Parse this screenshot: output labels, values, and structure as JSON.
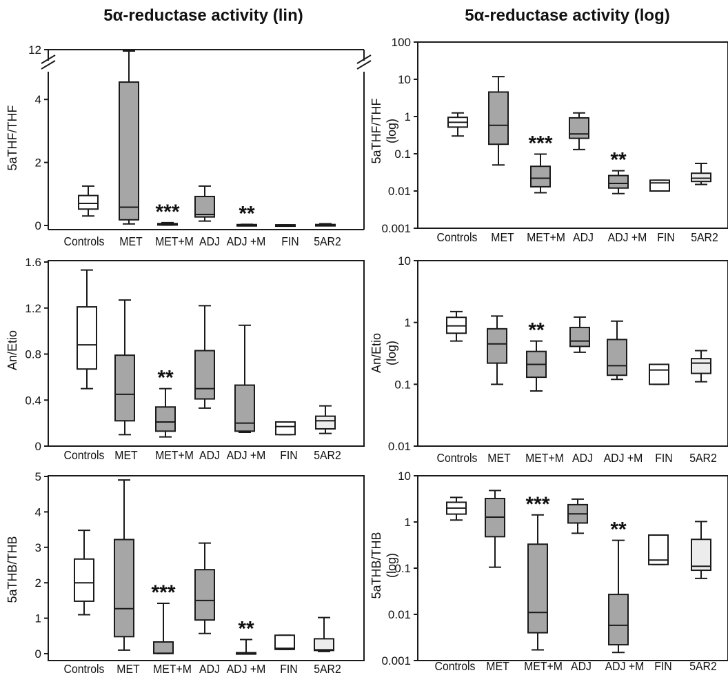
{
  "titles": {
    "left": "5α-reductase activity (lin)",
    "right": "5α-reductase activity (log)"
  },
  "categories": [
    "Controls",
    "MET",
    "MET+M",
    "ADJ",
    "ADJ +M",
    "FIN",
    "5AR2"
  ],
  "colors": {
    "controls_fill": "#ffffff",
    "treated_fill": "#a6a6a6",
    "fin_fill": "#ffffff",
    "ar2_fill": "#ececec",
    "stroke": "#1a1a1a"
  },
  "chart_data": [
    {
      "type": "box",
      "scale": "linear",
      "ylabel": "5aTHF/THF",
      "yticks": [
        0,
        2,
        4,
        12
      ],
      "ylim": [
        0,
        4.8
      ],
      "axis_break": true,
      "axis_break_top": 12,
      "categories": [
        "Controls",
        "MET",
        "MET+M",
        "ADJ",
        "ADJ +M",
        "FIN",
        "5AR2"
      ],
      "boxes": [
        {
          "min": 0.3,
          "q1": 0.52,
          "median": 0.7,
          "q3": 0.95,
          "max": 1.25
        },
        {
          "min": 0.05,
          "q1": 0.18,
          "median": 0.58,
          "q3": 4.55,
          "max": 11.8
        },
        {
          "min": 0.01,
          "q1": 0.015,
          "median": 0.03,
          "q3": 0.06,
          "max": 0.09
        },
        {
          "min": 0.14,
          "q1": 0.27,
          "median": 0.35,
          "q3": 0.92,
          "max": 1.25
        },
        {
          "min": 0.01,
          "q1": 0.013,
          "median": 0.016,
          "q3": 0.028,
          "max": 0.035
        },
        {
          "min": 0.01,
          "q1": 0.01,
          "median": 0.017,
          "q3": 0.02,
          "max": 0.02
        },
        {
          "min": 0.015,
          "q1": 0.018,
          "median": 0.022,
          "q3": 0.03,
          "max": 0.055
        }
      ],
      "annotations": [
        "",
        "",
        "***",
        "",
        "**",
        "",
        ""
      ]
    },
    {
      "type": "box",
      "scale": "log",
      "ylabel": "5aTHF/THF (log)",
      "yticks": [
        "0.001",
        "0.01",
        "0.1",
        "1",
        "10",
        "100"
      ],
      "ylim": [
        0.001,
        100
      ],
      "categories": [
        "Controls",
        "MET",
        "MET+M",
        "ADJ",
        "ADJ +M",
        "FIN",
        "5AR2"
      ],
      "boxes": [
        {
          "min": 0.3,
          "q1": 0.52,
          "median": 0.7,
          "q3": 0.95,
          "max": 1.25
        },
        {
          "min": 0.05,
          "q1": 0.18,
          "median": 0.58,
          "q3": 4.55,
          "max": 11.8
        },
        {
          "min": 0.009,
          "q1": 0.013,
          "median": 0.022,
          "q3": 0.046,
          "max": 0.098
        },
        {
          "min": 0.13,
          "q1": 0.26,
          "median": 0.34,
          "q3": 0.92,
          "max": 1.25
        },
        {
          "min": 0.0085,
          "q1": 0.012,
          "median": 0.016,
          "q3": 0.026,
          "max": 0.035
        },
        {
          "min": 0.01,
          "q1": 0.01,
          "median": 0.0165,
          "q3": 0.0195,
          "max": 0.0195
        },
        {
          "min": 0.015,
          "q1": 0.018,
          "median": 0.022,
          "q3": 0.03,
          "max": 0.055
        }
      ],
      "annotations": [
        "",
        "",
        "***",
        "",
        "**",
        "",
        ""
      ]
    },
    {
      "type": "box",
      "scale": "linear",
      "ylabel": "An/Etio",
      "yticks": [
        "0",
        "0.4",
        "0.8",
        "1.2",
        "1.6"
      ],
      "ylim": [
        0,
        1.6
      ],
      "categories": [
        "Controls",
        "MET",
        "MET+M",
        "ADJ",
        "ADJ +M",
        "FIN",
        "5AR2"
      ],
      "boxes": [
        {
          "min": 0.5,
          "q1": 0.67,
          "median": 0.88,
          "q3": 1.21,
          "max": 1.53
        },
        {
          "min": 0.1,
          "q1": 0.22,
          "median": 0.45,
          "q3": 0.79,
          "max": 1.27
        },
        {
          "min": 0.08,
          "q1": 0.13,
          "median": 0.21,
          "q3": 0.34,
          "max": 0.5
        },
        {
          "min": 0.33,
          "q1": 0.41,
          "median": 0.5,
          "q3": 0.83,
          "max": 1.22
        },
        {
          "min": 0.12,
          "q1": 0.13,
          "median": 0.2,
          "q3": 0.53,
          "max": 1.05
        },
        {
          "min": 0.1,
          "q1": 0.1,
          "median": 0.17,
          "q3": 0.21,
          "max": 0.21
        },
        {
          "min": 0.11,
          "q1": 0.15,
          "median": 0.22,
          "q3": 0.26,
          "max": 0.35
        }
      ],
      "annotations": [
        "",
        "",
        "**",
        "",
        "",
        "",
        ""
      ]
    },
    {
      "type": "box",
      "scale": "log",
      "ylabel": "An/Etio (log)",
      "yticks": [
        "0.01",
        "0.1",
        "1",
        "10"
      ],
      "ylim": [
        0.01,
        10
      ],
      "categories": [
        "Controls",
        "MET",
        "MET+M",
        "ADJ",
        "ADJ +M",
        "FIN",
        "5AR2"
      ],
      "boxes": [
        {
          "min": 0.5,
          "q1": 0.67,
          "median": 0.88,
          "q3": 1.21,
          "max": 1.5
        },
        {
          "min": 0.1,
          "q1": 0.22,
          "median": 0.45,
          "q3": 0.79,
          "max": 1.27
        },
        {
          "min": 0.078,
          "q1": 0.13,
          "median": 0.21,
          "q3": 0.34,
          "max": 0.5
        },
        {
          "min": 0.33,
          "q1": 0.41,
          "median": 0.5,
          "q3": 0.83,
          "max": 1.22
        },
        {
          "min": 0.12,
          "q1": 0.14,
          "median": 0.2,
          "q3": 0.53,
          "max": 1.05
        },
        {
          "min": 0.1,
          "q1": 0.1,
          "median": 0.17,
          "q3": 0.21,
          "max": 0.21
        },
        {
          "min": 0.11,
          "q1": 0.15,
          "median": 0.22,
          "q3": 0.26,
          "max": 0.35
        }
      ],
      "annotations": [
        "",
        "",
        "**",
        "",
        "",
        "",
        ""
      ]
    },
    {
      "type": "box",
      "scale": "linear",
      "ylabel": "5aTHB/THB",
      "yticks": [
        "0",
        "1",
        "2",
        "3",
        "4",
        "5"
      ],
      "ylim": [
        -0.1,
        5
      ],
      "categories": [
        "Controls",
        "MET",
        "MET+M",
        "ADJ",
        "ADJ +M",
        "FIN",
        "5AR2"
      ],
      "boxes": [
        {
          "min": 1.1,
          "q1": 1.48,
          "median": 2.0,
          "q3": 2.67,
          "max": 3.48
        },
        {
          "min": 0.1,
          "q1": 0.48,
          "median": 1.27,
          "q3": 3.22,
          "max": 4.9
        },
        {
          "min": 0.0017,
          "q1": 0.004,
          "median": 0.011,
          "q3": 0.33,
          "max": 1.42
        },
        {
          "min": 0.57,
          "q1": 0.95,
          "median": 1.5,
          "q3": 2.37,
          "max": 3.12
        },
        {
          "min": 0.0015,
          "q1": 0.0022,
          "median": 0.0058,
          "q3": 0.027,
          "max": 0.4
        },
        {
          "min": 0.12,
          "q1": 0.12,
          "median": 0.15,
          "q3": 0.52,
          "max": 0.52
        },
        {
          "min": 0.06,
          "q1": 0.09,
          "median": 0.11,
          "q3": 0.42,
          "max": 1.02
        }
      ],
      "annotations": [
        "",
        "",
        "***",
        "",
        "**",
        "",
        ""
      ]
    },
    {
      "type": "box",
      "scale": "log",
      "ylabel": "5aTHB/THB (log)",
      "yticks": [
        "0.001",
        "0.01",
        "0.1",
        "1",
        "10"
      ],
      "ylim": [
        0.001,
        10
      ],
      "categories": [
        "Controls",
        "MET",
        "MET+M",
        "ADJ",
        "ADJ +M",
        "FIN",
        "5AR2"
      ],
      "boxes": [
        {
          "min": 1.1,
          "q1": 1.48,
          "median": 2.0,
          "q3": 2.67,
          "max": 3.4
        },
        {
          "min": 0.105,
          "q1": 0.48,
          "median": 1.27,
          "q3": 3.22,
          "max": 4.8
        },
        {
          "min": 0.0017,
          "q1": 0.004,
          "median": 0.011,
          "q3": 0.33,
          "max": 1.42
        },
        {
          "min": 0.57,
          "q1": 0.95,
          "median": 1.5,
          "q3": 2.37,
          "max": 3.12
        },
        {
          "min": 0.0015,
          "q1": 0.0022,
          "median": 0.0058,
          "q3": 0.027,
          "max": 0.4
        },
        {
          "min": 0.12,
          "q1": 0.12,
          "median": 0.15,
          "q3": 0.52,
          "max": 0.52
        },
        {
          "min": 0.06,
          "q1": 0.09,
          "median": 0.11,
          "q3": 0.42,
          "max": 1.02
        }
      ],
      "annotations": [
        "",
        "",
        "***",
        "",
        "**",
        "",
        ""
      ]
    }
  ]
}
